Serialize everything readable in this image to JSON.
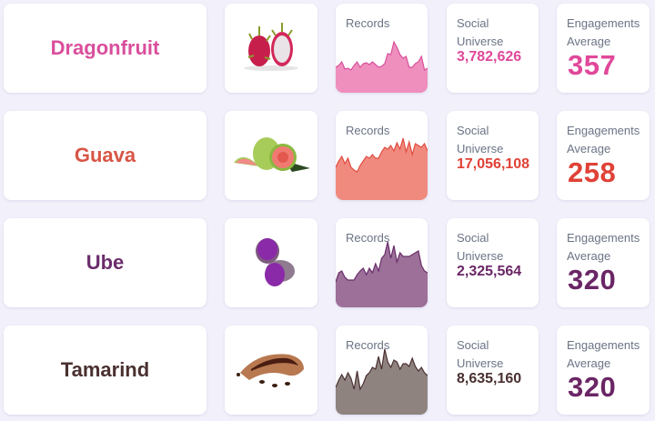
{
  "labels": {
    "records": "Records",
    "social_1": "Social",
    "social_2": "Universe",
    "eng_1": "Engagements",
    "eng_2": "Average"
  },
  "rows": [
    {
      "name": "Dragonfruit",
      "color": "#d94f9c",
      "fill": "#ee8fbd",
      "line": "#d94f9c",
      "icon": "dragonfruit-image",
      "social": "3,782,626",
      "engagement": "357",
      "eng_color": "#e0489a",
      "spark": [
        70,
        68,
        64,
        72,
        71,
        73,
        68,
        64,
        70,
        66,
        65,
        67,
        64,
        67,
        70,
        69,
        66,
        55,
        56,
        42,
        48,
        56,
        60,
        58,
        70,
        70,
        66,
        64,
        58,
        73,
        71
      ]
    },
    {
      "name": "Guava",
      "color": "#d85545",
      "fill": "#f08a7f",
      "line": "#e04b40",
      "icon": "guava-image",
      "social": "17,056,108",
      "engagement": "258",
      "eng_color": "#e04136",
      "spark": [
        62,
        55,
        50,
        58,
        52,
        62,
        65,
        67,
        60,
        55,
        50,
        52,
        48,
        52,
        52,
        45,
        40,
        42,
        38,
        44,
        35,
        42,
        30,
        45,
        34,
        48,
        36,
        38,
        40,
        36,
        44
      ]
    },
    {
      "name": "Ube",
      "color": "#6b2d6b",
      "fill": "#9c7099",
      "line": "#6a2d6a",
      "icon": "ube-image",
      "social": "2,325,564",
      "engagement": "320",
      "eng_color": "#6a2665",
      "spark": [
        70,
        60,
        58,
        65,
        68,
        68,
        68,
        62,
        58,
        55,
        62,
        55,
        60,
        50,
        58,
        44,
        40,
        26,
        44,
        30,
        48,
        38,
        42,
        42,
        42,
        40,
        38,
        36,
        52,
        58,
        60
      ]
    },
    {
      "name": "Tamarind",
      "color": "#4a3030",
      "fill": "#8f8380",
      "line": "#4a3030",
      "icon": "tamarind-image",
      "social": "8,635,160",
      "engagement": "320",
      "eng_color": "#6a2665",
      "spark": [
        68,
        60,
        54,
        60,
        52,
        58,
        70,
        50,
        70,
        64,
        55,
        52,
        46,
        48,
        34,
        48,
        26,
        40,
        46,
        38,
        40,
        48,
        42,
        42,
        45,
        36,
        45,
        50,
        46,
        52,
        55
      ]
    }
  ]
}
